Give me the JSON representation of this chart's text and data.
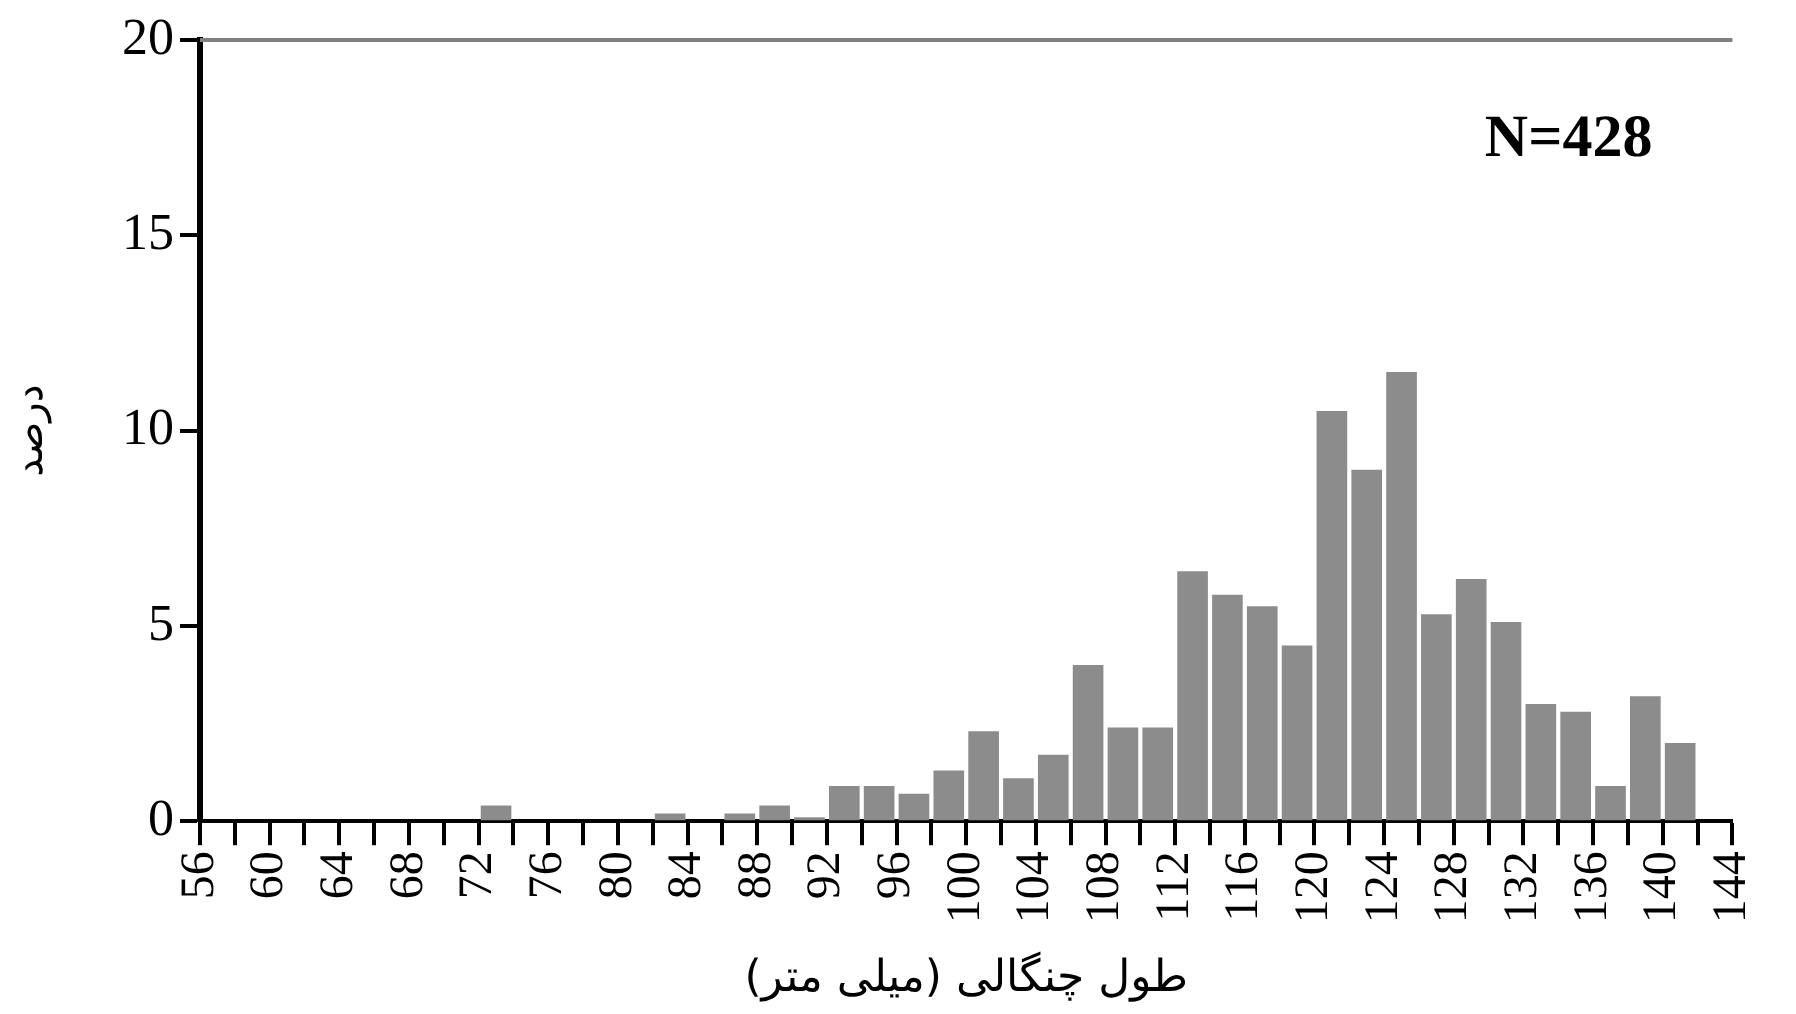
{
  "chart_data": {
    "type": "histogram",
    "xlabel": "طول چنگالی (میلی متر)",
    "ylabel": "درصد",
    "annotations": [
      "N=428"
    ],
    "bins": [
      56,
      58,
      60,
      62,
      64,
      66,
      68,
      70,
      72,
      74,
      76,
      78,
      80,
      82,
      84,
      86,
      88,
      90,
      92,
      94,
      96,
      98,
      100,
      102,
      104,
      106,
      108,
      110,
      112,
      114,
      116,
      118,
      120,
      122,
      124,
      126,
      128,
      130,
      132,
      134,
      136,
      138,
      140,
      142,
      144
    ],
    "values": [
      null,
      null,
      null,
      null,
      null,
      null,
      null,
      null,
      0.4,
      null,
      null,
      null,
      null,
      0.2,
      null,
      0.2,
      0.4,
      0.1,
      0.9,
      0.9,
      0.7,
      1.3,
      2.3,
      1.1,
      1.7,
      4.0,
      2.4,
      2.4,
      6.4,
      5.8,
      5.5,
      4.5,
      10.5,
      9.0,
      11.5,
      5.3,
      6.2,
      5.1,
      3.0,
      2.8,
      0.9,
      3.2,
      2.0,
      null
    ],
    "color": "#8c8c8c",
    "xlim": [
      56,
      144
    ],
    "xticks": [
      56,
      {
        "value": 58,
        "label": null
      },
      60,
      {
        "value": 62,
        "label": null
      },
      64,
      {
        "value": 66,
        "label": null
      },
      68,
      {
        "value": 70,
        "label": null
      },
      72,
      {
        "value": 74,
        "label": null
      },
      76,
      {
        "value": 78,
        "label": null
      },
      80,
      {
        "value": 82,
        "label": null
      },
      84,
      {
        "value": 86,
        "label": null
      },
      88,
      {
        "value": 90,
        "label": null
      },
      92,
      {
        "value": 94,
        "label": null
      },
      96,
      {
        "value": 98,
        "label": null
      },
      100,
      {
        "value": 102,
        "label": null
      },
      104,
      {
        "value": 106,
        "label": null
      },
      108,
      {
        "value": 110,
        "label": null
      },
      112,
      {
        "value": 114,
        "label": null
      },
      116,
      {
        "value": 118,
        "label": null
      },
      120,
      {
        "value": 122,
        "label": null
      },
      124,
      {
        "value": 126,
        "label": null
      },
      128,
      {
        "value": 130,
        "label": null
      },
      132,
      {
        "value": 134,
        "label": null
      },
      136,
      {
        "value": 138,
        "label": null
      },
      140,
      {
        "value": 142,
        "label": null
      },
      144
    ],
    "ylim": [
      0,
      20
    ],
    "yticks": [
      0,
      5,
      10,
      15,
      20
    ],
    "grid": false,
    "legend": false
  }
}
